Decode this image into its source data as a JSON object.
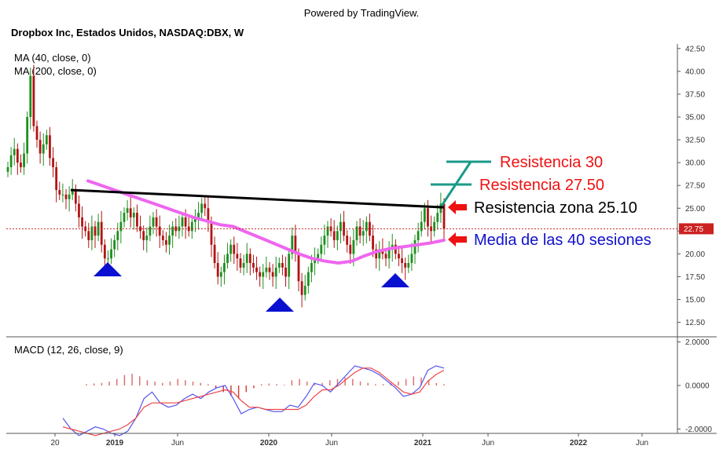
{
  "header": {
    "powered_by": "Powered by TradingView.",
    "symbol": "Dropbox Inc, Estados Unidos, NASDAQ:DBX, W",
    "indicators": [
      "MA (40, close, 0)",
      "MA (200, close, 0)"
    ],
    "macd_label": "MACD (12, 26, close, 9)"
  },
  "colors": {
    "up": "#1f8f1f",
    "down": "#b11414",
    "ma40": "#ee66ee",
    "resistance_line": "#000000",
    "annotation_red": "#ee1111",
    "annotation_blue": "#1111cc",
    "teal": "#1a9a88",
    "triangle": "#0a10d0",
    "macd": "#5555ee",
    "signal": "#ee4444"
  },
  "chart_data": [
    {
      "type": "candlestick",
      "title": "Dropbox Inc, Estados Unidos, NASDAQ:DBX, W",
      "x_ticks": [
        "20",
        "2019",
        "Jun",
        "2020",
        "Jun",
        "2021",
        "Jun",
        "2022",
        "Jun"
      ],
      "y_ticks": [
        "42.50",
        "40.00",
        "37.50",
        "35.00",
        "32.50",
        "30.00",
        "27.50",
        "25.00",
        "22.50",
        "20.00",
        "17.50",
        "15.00",
        "12.50"
      ],
      "ylim": [
        11,
        43
      ],
      "last_price": "22.75",
      "weekly_closes": [
        29.5,
        30.8,
        31.5,
        30,
        29.5,
        31,
        35,
        39.5,
        34,
        32.5,
        31,
        32,
        33,
        30.5,
        29.5,
        27,
        26.5,
        26.5,
        26,
        26.5,
        27,
        25.5,
        24,
        23,
        22.5,
        21.5,
        23,
        22,
        23.5,
        21,
        19.5,
        19.5,
        20.5,
        21.5,
        22.5,
        23.5,
        24.5,
        25,
        24,
        24.5,
        23,
        22.5,
        21.5,
        22,
        23,
        24,
        23,
        22,
        21.5,
        21,
        22,
        23,
        22.5,
        23,
        24,
        23,
        22.5,
        23.5,
        24,
        24.5,
        25.5,
        25,
        23.5,
        21,
        19,
        17.5,
        18,
        19,
        20,
        21,
        20,
        19.5,
        18.5,
        19,
        20,
        19,
        18.5,
        18,
        17.5,
        18,
        18.5,
        18,
        17.5,
        18.5,
        19,
        18.5,
        17.5,
        20,
        22,
        20,
        17,
        15.5,
        16.5,
        18,
        19,
        19.5,
        20,
        21,
        22,
        23,
        22.5,
        21.5,
        22.5,
        23.5,
        22,
        21,
        20,
        21.5,
        23,
        22,
        22.5,
        23.5,
        22,
        20.5,
        19.5,
        20.5,
        20,
        19.5,
        20.5,
        21,
        20,
        19.5,
        19,
        18.5,
        19,
        20,
        21.5,
        22.5,
        23.5,
        25,
        23,
        22.5,
        23.5,
        24.5,
        25.5,
        22.75
      ],
      "series": [
        {
          "name": "MA (40, close, 0)",
          "values": [
            28,
            27.5,
            27,
            26.5,
            26,
            25.5,
            25,
            24.5,
            24,
            23.6,
            23.2,
            23,
            22.4,
            21.8,
            21.2,
            20.6,
            20,
            19.5,
            19.2,
            19,
            19.2,
            19.8,
            20.3,
            20.6,
            20.8,
            21,
            21.2,
            21.5
          ]
        }
      ],
      "annotations": {
        "resistance_30": "Resistencia 30",
        "resistance_27_50": "Resistencia 27.50",
        "resistance_zone": "Resistencia zona 25.10",
        "moving_average": "Media de las 40 sesiones"
      },
      "trendline": {
        "start": 27.0,
        "end": 25.1
      }
    },
    {
      "type": "macd",
      "title": "MACD (12, 26, close, 9)",
      "y_ticks": [
        "2.0000",
        "0.0000",
        "-2.0000"
      ],
      "ylim": [
        -2.2,
        2.2
      ],
      "macd": [
        -1.5,
        -2,
        -2.3,
        -2.1,
        -1.9,
        -2,
        -2.2,
        -2.3,
        -2.1,
        -1.5,
        -0.6,
        -0.3,
        -0.8,
        -1,
        -0.9,
        -0.6,
        -0.4,
        -0.6,
        -0.3,
        -0.1,
        0,
        -0.6,
        -1.3,
        -1.1,
        -1,
        -1.1,
        -1.2,
        -1.2,
        -0.9,
        -1,
        -0.5,
        0.1,
        0,
        -0.3,
        0.1,
        0.5,
        0.9,
        0.8,
        0.7,
        0.5,
        0.2,
        -0.1,
        -0.5,
        -0.4,
        -0.1,
        0.7,
        0.9,
        0.8
      ],
      "signal": [
        -1.9,
        -2,
        -2.1,
        -2.2,
        -2.3,
        -2.2,
        -2.1,
        -2,
        -1.8,
        -1.5,
        -1,
        -0.8,
        -0.8,
        -0.8,
        -0.8,
        -0.7,
        -0.6,
        -0.5,
        -0.4,
        -0.3,
        -0.2,
        -0.3,
        -0.7,
        -1,
        -1,
        -1.1,
        -1.1,
        -1.1,
        -1.1,
        -1.1,
        -0.9,
        -0.5,
        -0.2,
        -0.2,
        0,
        0.3,
        0.6,
        0.8,
        0.8,
        0.6,
        0.3,
        0,
        -0.3,
        -0.4,
        -0.3,
        0.2,
        0.5,
        0.7
      ],
      "histogram": [
        0.1,
        0.15,
        0.2,
        0.3,
        0.5,
        0.8,
        0.9,
        0.7,
        0.4,
        0.3,
        0.2,
        0.3,
        0.5,
        0.4,
        0.3,
        0.2,
        0.1,
        -0.2,
        -0.5,
        -0.8,
        -1,
        -0.5,
        -0.2,
        0.1,
        0.15,
        0.1,
        0.05,
        0.4,
        0.5,
        0.3,
        0.1,
        0.2,
        0.4,
        0.5,
        0.6,
        0.5,
        0.3,
        0.2,
        0.1,
        0.1,
        0.2,
        0.3,
        0.5,
        0.7,
        0.6,
        0.4,
        0.2,
        0.1
      ]
    }
  ]
}
